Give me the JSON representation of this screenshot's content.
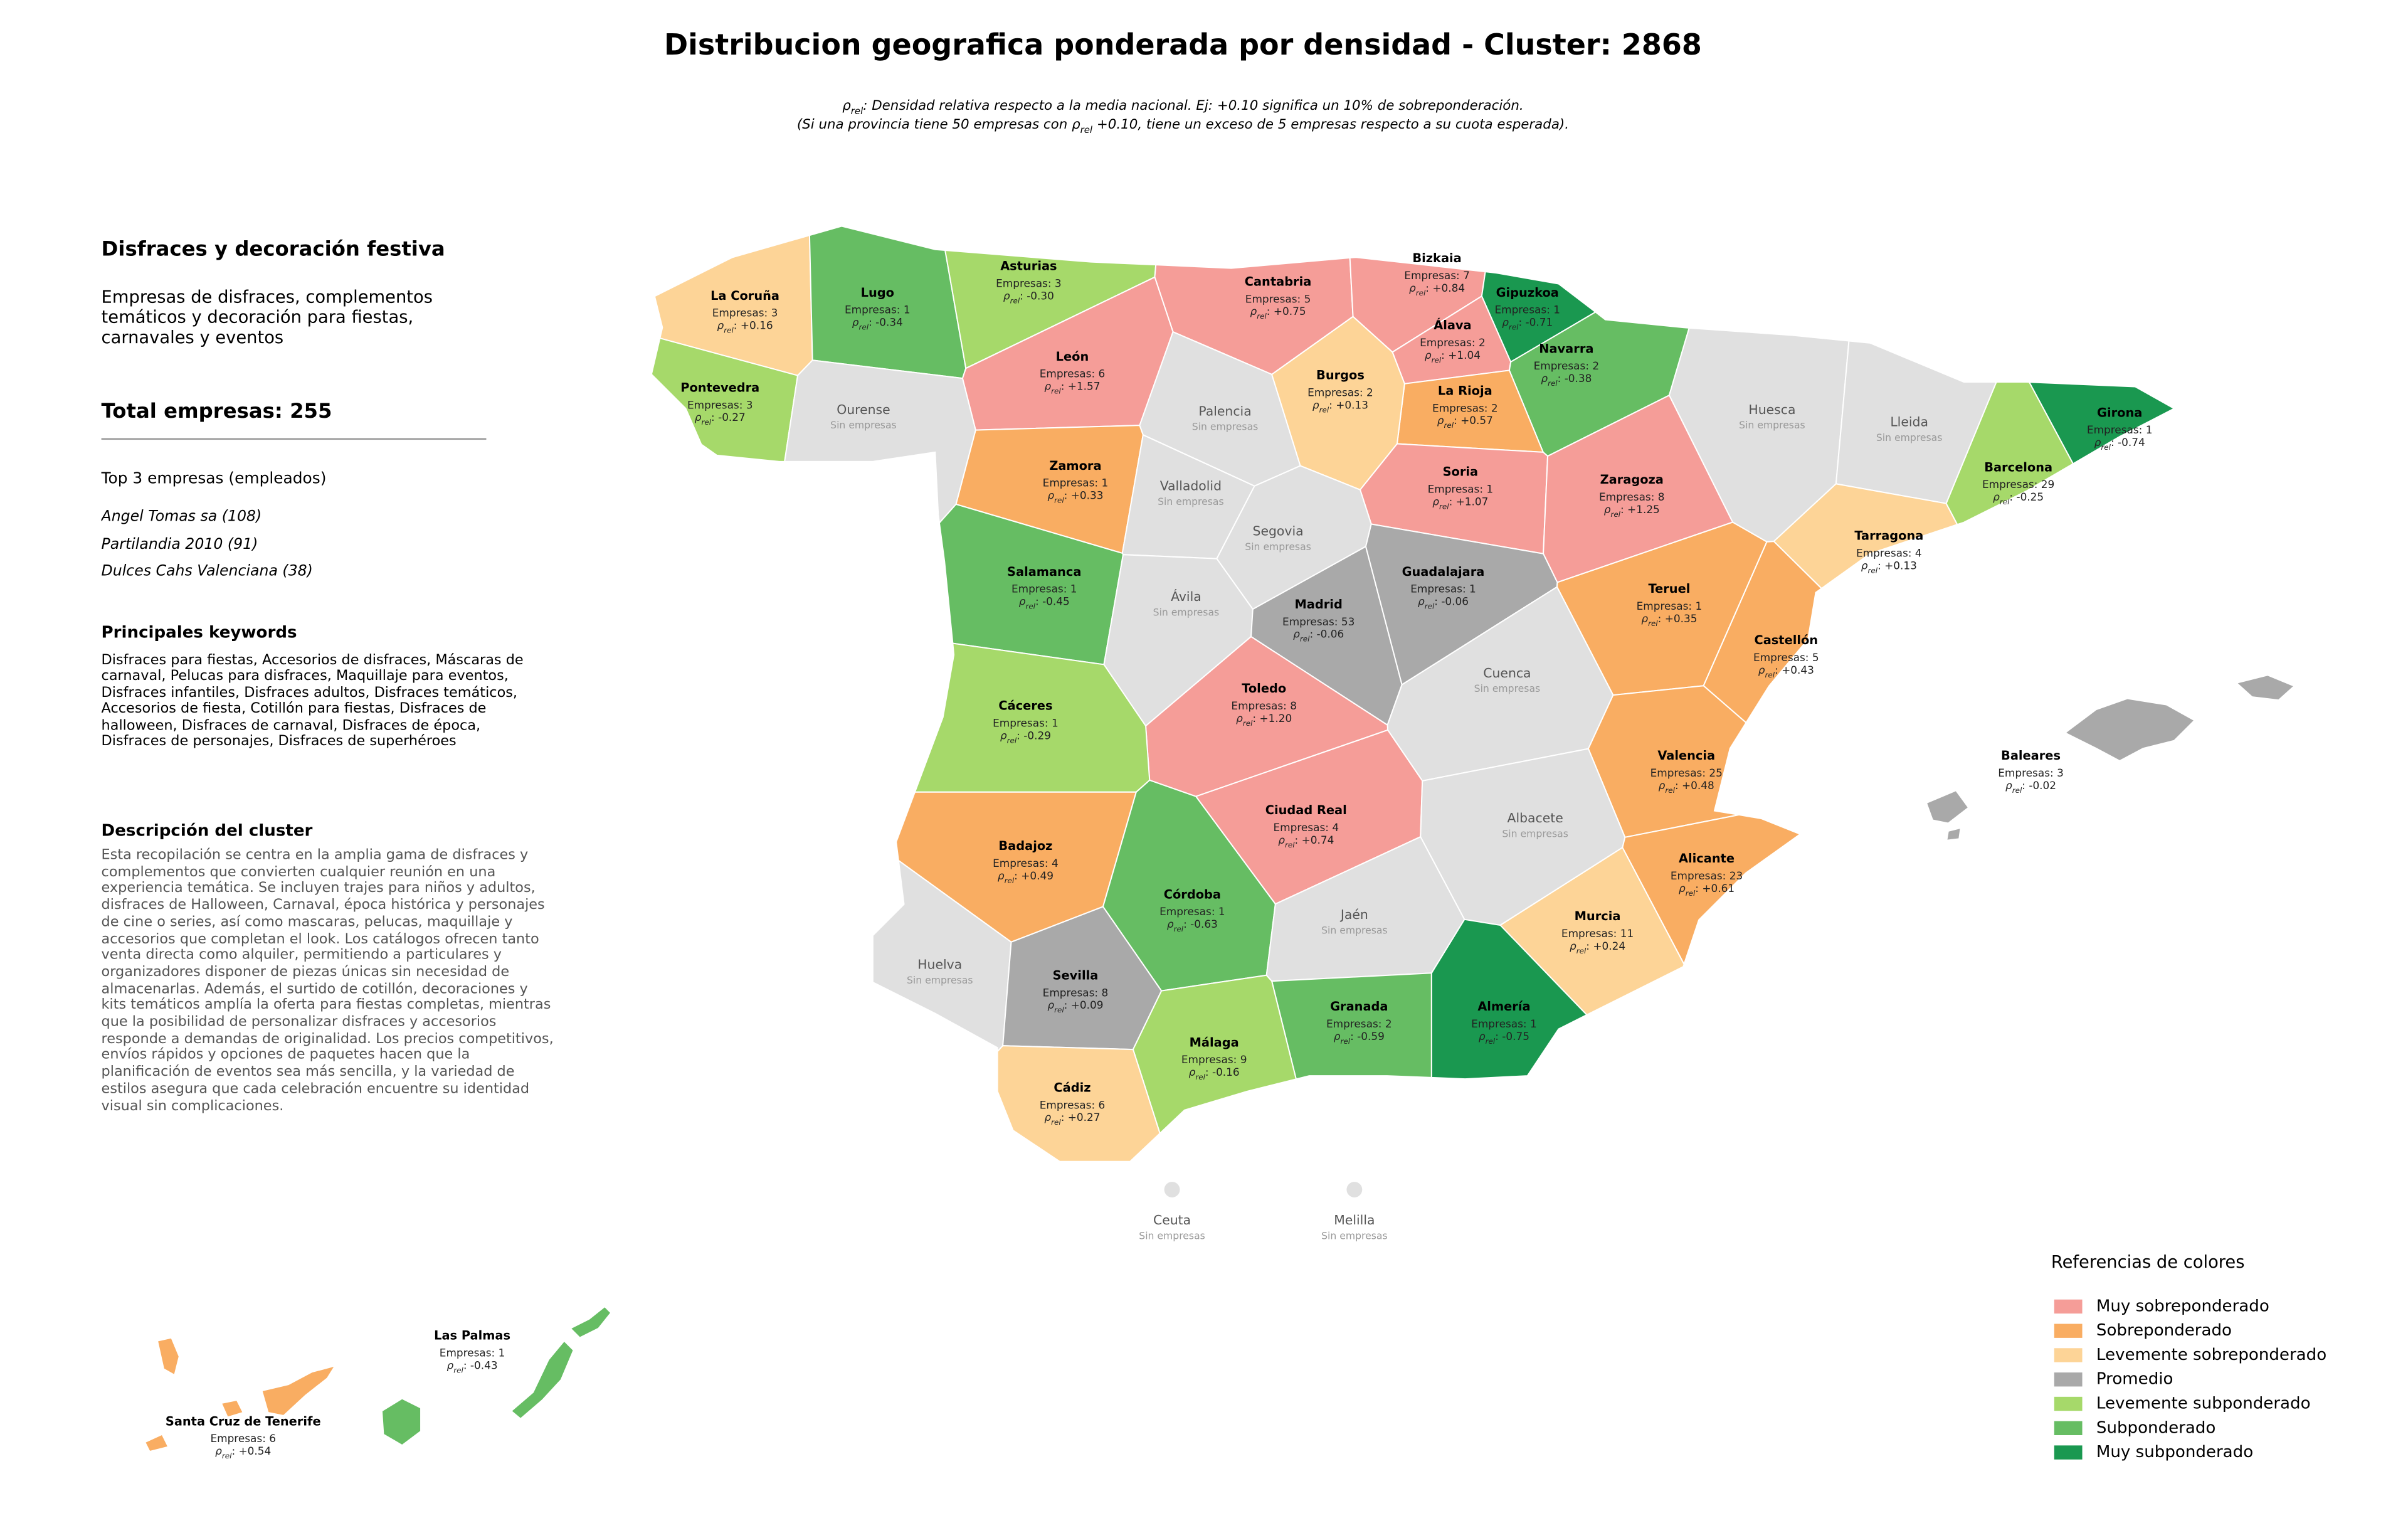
{
  "title": "Distribucion geografica ponderada por densidad - Cluster: 2868",
  "subtitle": {
    "line1": ": Densidad relativa respecto a la media nacional. Ej: +0.10 significa un 10% de sobreponderación.",
    "line2_before": "(Si una provincia tiene 50 empresas con ",
    "line2_after": " +0.10, tiene un exceso de 5 empresas respecto a su cuota esperada)."
  },
  "symbols": {
    "rho": "ρ",
    "rel": "rel",
    "rho_sep": ": ",
    "empresas": "Empresas: ",
    "no_data": "Sin empresas"
  },
  "panel": {
    "heading": "Disfraces y decoración festiva",
    "description": "Empresas de disfraces, complementos temáticos y decoración para fiestas, carnavales y eventos",
    "total": "Total empresas: 255",
    "top_title": "Top 3 empresas (empleados)",
    "top": [
      "Angel Tomas sa (108)",
      "Partilandia 2010 (91)",
      "Dulces Cahs Valenciana (38)"
    ],
    "keywords_title": "Principales keywords",
    "keywords": "Disfraces para fiestas, Accesorios de disfraces, Máscaras de carnaval, Pelucas para disfraces, Maquillaje para eventos, Disfraces infantiles, Disfraces adultos, Disfraces temáticos, Accesorios de fiesta, Cotillón para fiestas, Disfraces de halloween, Disfraces de carnaval, Disfraces de época, Disfraces de personajes, Disfraces de superhéroes",
    "cluster_title": "Descripción del cluster",
    "cluster_text": "Esta recopilación se centra en la amplia gama de disfraces y complementos que convierten cualquier reunión en una experiencia temática. Se incluyen trajes para niños y adultos, disfraces de Halloween, Carnaval, época histórica y personajes de cine o series, así como mascaras, pelucas, maquillaje y accesorios que completan el look. Los catálogos ofrecen tanto venta directa como alquiler, permitiendo a particulares y organizadores disponer de piezas únicas sin necesidad de almacenarlas. Además, el surtido de cotillón, decoraciones y kits temáticos amplía la oferta para fiestas completas, mientras que la posibilidad de personalizar disfraces y accesorios responde a demandas de originalidad. Los precios competitivos, envíos rápidos y opciones de paquetes hacen que la planificación de eventos sea más sencilla, y la variedad de estilos asegura que cada celebración encuentre su identidad visual sin complicaciones."
  },
  "legend": {
    "title": "Referencias de colores",
    "no_data_color": "#e0e0e0",
    "items": [
      {
        "name": "Muy sobreponderado",
        "color": "#f59d98"
      },
      {
        "name": "Sobreponderado",
        "color": "#f9ad62"
      },
      {
        "name": "Levemente sobreponderado",
        "color": "#fdd497"
      },
      {
        "name": "Promedio",
        "color": "#a9a9a9"
      },
      {
        "name": "Levemente subponderado",
        "color": "#a6d96a"
      },
      {
        "name": "Subponderado",
        "color": "#66bd63"
      },
      {
        "name": "Muy subponderado",
        "color": "#1a9850"
      }
    ]
  },
  "provinces": [
    {
      "name": "La Coruña",
      "empresas": 3,
      "rho": 0.16,
      "rho_label": "+0.16",
      "level": "Levemente sobreponderado"
    },
    {
      "name": "Lugo",
      "empresas": 1,
      "rho": -0.34,
      "rho_label": "-0.34",
      "level": "Subponderado"
    },
    {
      "name": "Asturias",
      "empresas": 3,
      "rho": -0.3,
      "rho_label": "-0.30",
      "level": "Levemente subponderado"
    },
    {
      "name": "Cantabria",
      "empresas": 5,
      "rho": 0.75,
      "rho_label": "+0.75",
      "level": "Muy sobreponderado"
    },
    {
      "name": "Bizkaia",
      "empresas": 7,
      "rho": 0.84,
      "rho_label": "+0.84",
      "level": "Muy sobreponderado"
    },
    {
      "name": "Gipuzkoa",
      "empresas": 1,
      "rho": -0.71,
      "rho_label": "-0.71",
      "level": "Muy subponderado"
    },
    {
      "name": "Álava",
      "empresas": 2,
      "rho": 1.04,
      "rho_label": "+1.04",
      "level": "Muy sobreponderado"
    },
    {
      "name": "Navarra",
      "empresas": 2,
      "rho": -0.38,
      "rho_label": "-0.38",
      "level": "Subponderado"
    },
    {
      "name": "La Rioja",
      "empresas": 2,
      "rho": 0.57,
      "rho_label": "+0.57",
      "level": "Sobreponderado"
    },
    {
      "name": "Huesca",
      "empresas": null,
      "rho": null,
      "rho_label": null,
      "level": null
    },
    {
      "name": "Lleida",
      "empresas": null,
      "rho": null,
      "rho_label": null,
      "level": null
    },
    {
      "name": "Girona",
      "empresas": 1,
      "rho": -0.74,
      "rho_label": "-0.74",
      "level": "Muy subponderado"
    },
    {
      "name": "Barcelona",
      "empresas": 29,
      "rho": -0.25,
      "rho_label": "-0.25",
      "level": "Levemente subponderado"
    },
    {
      "name": "Pontevedra",
      "empresas": 3,
      "rho": -0.27,
      "rho_label": "-0.27",
      "level": "Levemente subponderado"
    },
    {
      "name": "Ourense",
      "empresas": null,
      "rho": null,
      "rho_label": null,
      "level": null
    },
    {
      "name": "León",
      "empresas": 6,
      "rho": 1.57,
      "rho_label": "+1.57",
      "level": "Muy sobreponderado"
    },
    {
      "name": "Palencia",
      "empresas": null,
      "rho": null,
      "rho_label": null,
      "level": null
    },
    {
      "name": "Burgos",
      "empresas": 2,
      "rho": 0.13,
      "rho_label": "+0.13",
      "level": "Levemente sobreponderado"
    },
    {
      "name": "Soria",
      "empresas": 1,
      "rho": 1.07,
      "rho_label": "+1.07",
      "level": "Muy sobreponderado"
    },
    {
      "name": "Zaragoza",
      "empresas": 8,
      "rho": 1.25,
      "rho_label": "+1.25",
      "level": "Muy sobreponderado"
    },
    {
      "name": "Zamora",
      "empresas": 1,
      "rho": 0.33,
      "rho_label": "+0.33",
      "level": "Sobreponderado"
    },
    {
      "name": "Valladolid",
      "empresas": null,
      "rho": null,
      "rho_label": null,
      "level": null
    },
    {
      "name": "Segovia",
      "empresas": null,
      "rho": null,
      "rho_label": null,
      "level": null
    },
    {
      "name": "Salamanca",
      "empresas": 1,
      "rho": -0.45,
      "rho_label": "-0.45",
      "level": "Subponderado"
    },
    {
      "name": "Ávila",
      "empresas": null,
      "rho": null,
      "rho_label": null,
      "level": null
    },
    {
      "name": "Madrid",
      "empresas": 53,
      "rho": -0.06,
      "rho_label": "-0.06",
      "level": "Promedio"
    },
    {
      "name": "Guadalajara",
      "empresas": 1,
      "rho": -0.06,
      "rho_label": "-0.06",
      "level": "Promedio"
    },
    {
      "name": "Teruel",
      "empresas": 1,
      "rho": 0.35,
      "rho_label": "+0.35",
      "level": "Sobreponderado"
    },
    {
      "name": "Tarragona",
      "empresas": 4,
      "rho": 0.13,
      "rho_label": "+0.13",
      "level": "Levemente sobreponderado"
    },
    {
      "name": "Castellón",
      "empresas": 5,
      "rho": 0.43,
      "rho_label": "+0.43",
      "level": "Sobreponderado"
    },
    {
      "name": "Cuenca",
      "empresas": null,
      "rho": null,
      "rho_label": null,
      "level": null
    },
    {
      "name": "Toledo",
      "empresas": 8,
      "rho": 1.2,
      "rho_label": "+1.20",
      "level": "Muy sobreponderado"
    },
    {
      "name": "Cáceres",
      "empresas": 1,
      "rho": -0.29,
      "rho_label": "-0.29",
      "level": "Levemente subponderado"
    },
    {
      "name": "Valencia",
      "empresas": 25,
      "rho": 0.48,
      "rho_label": "+0.48",
      "level": "Sobreponderado"
    },
    {
      "name": "Badajoz",
      "empresas": 4,
      "rho": 0.49,
      "rho_label": "+0.49",
      "level": "Sobreponderado"
    },
    {
      "name": "Ciudad Real",
      "empresas": 4,
      "rho": 0.74,
      "rho_label": "+0.74",
      "level": "Muy sobreponderado"
    },
    {
      "name": "Albacete",
      "empresas": null,
      "rho": null,
      "rho_label": null,
      "level": null
    },
    {
      "name": "Alicante",
      "empresas": 23,
      "rho": 0.61,
      "rho_label": "+0.61",
      "level": "Sobreponderado"
    },
    {
      "name": "Córdoba",
      "empresas": 1,
      "rho": -0.63,
      "rho_label": "-0.63",
      "level": "Subponderado"
    },
    {
      "name": "Jaén",
      "empresas": null,
      "rho": null,
      "rho_label": null,
      "level": null
    },
    {
      "name": "Murcia",
      "empresas": 11,
      "rho": 0.24,
      "rho_label": "+0.24",
      "level": "Levemente sobreponderado"
    },
    {
      "name": "Huelva",
      "empresas": null,
      "rho": null,
      "rho_label": null,
      "level": null
    },
    {
      "name": "Sevilla",
      "empresas": 8,
      "rho": 0.09,
      "rho_label": "+0.09",
      "level": "Promedio"
    },
    {
      "name": "Granada",
      "empresas": 2,
      "rho": -0.59,
      "rho_label": "-0.59",
      "level": "Subponderado"
    },
    {
      "name": "Almería",
      "empresas": 1,
      "rho": -0.75,
      "rho_label": "-0.75",
      "level": "Muy subponderado"
    },
    {
      "name": "Málaga",
      "empresas": 9,
      "rho": -0.16,
      "rho_label": "-0.16",
      "level": "Levemente subponderado"
    },
    {
      "name": "Cádiz",
      "empresas": 6,
      "rho": 0.27,
      "rho_label": "+0.27",
      "level": "Levemente sobreponderado"
    },
    {
      "name": "Baleares",
      "empresas": 3,
      "rho": -0.02,
      "rho_label": "-0.02",
      "level": "Promedio"
    },
    {
      "name": "Ceuta",
      "empresas": null,
      "rho": null,
      "rho_label": null,
      "level": null
    },
    {
      "name": "Melilla",
      "empresas": null,
      "rho": null,
      "rho_label": null,
      "level": null
    },
    {
      "name": "Las Palmas",
      "empresas": 1,
      "rho": -0.43,
      "rho_label": "-0.43",
      "level": "Subponderado"
    },
    {
      "name": "Santa Cruz de Tenerife",
      "empresas": 6,
      "rho": 0.54,
      "rho_label": "+0.54",
      "level": "Sobreponderado"
    }
  ]
}
